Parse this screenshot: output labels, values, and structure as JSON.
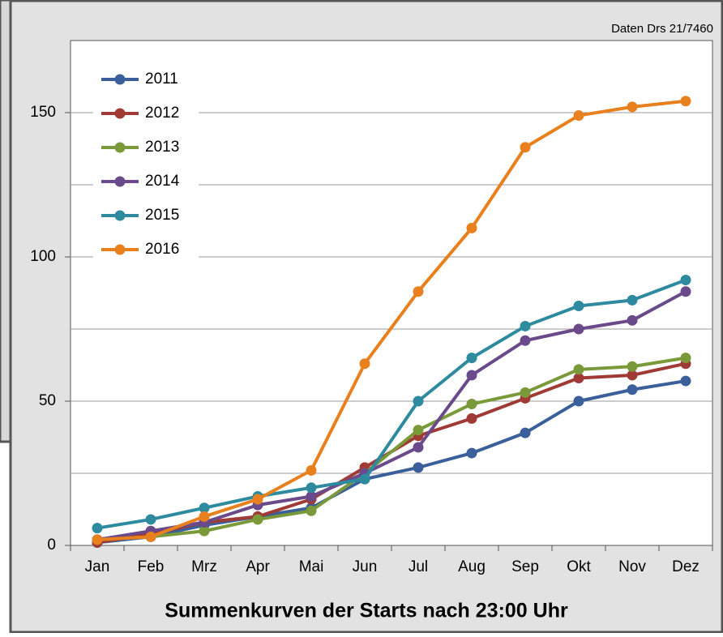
{
  "chart_data": {
    "type": "line",
    "title": "Summenkurven der Starts nach 23:00 Uhr",
    "annotation": "Daten Drs 21/7460",
    "categories": [
      "Jan",
      "Feb",
      "Mrz",
      "Apr",
      "Mai",
      "Jun",
      "Jul",
      "Aug",
      "Sep",
      "Okt",
      "Nov",
      "Dez"
    ],
    "series": [
      {
        "name": "2011",
        "color": "#3a5f9a",
        "values": [
          1,
          3,
          7,
          10,
          13,
          23,
          27,
          32,
          39,
          50,
          54,
          57
        ]
      },
      {
        "name": "2012",
        "color": "#a03a35",
        "values": [
          1,
          4,
          8,
          10,
          16,
          27,
          38,
          44,
          51,
          58,
          59,
          63
        ]
      },
      {
        "name": "2013",
        "color": "#7a9a3a",
        "values": [
          2,
          3,
          5,
          9,
          12,
          25,
          40,
          49,
          53,
          61,
          62,
          65
        ]
      },
      {
        "name": "2014",
        "color": "#6a4a8a",
        "values": [
          2,
          5,
          8,
          14,
          17,
          25,
          34,
          59,
          71,
          75,
          78,
          88
        ]
      },
      {
        "name": "2015",
        "color": "#2e8a9e",
        "values": [
          6,
          9,
          13,
          17,
          20,
          23,
          50,
          65,
          76,
          83,
          85,
          92
        ]
      },
      {
        "name": "2016",
        "color": "#e8801e",
        "values": [
          2,
          3,
          10,
          16,
          26,
          63,
          88,
          110,
          138,
          149,
          152,
          154
        ]
      }
    ],
    "ylim": [
      0,
      175
    ],
    "yticks": [
      0,
      50,
      100,
      150
    ],
    "minor_gridlines": [
      25,
      75,
      125
    ],
    "grid": true,
    "legend": "upper left"
  }
}
